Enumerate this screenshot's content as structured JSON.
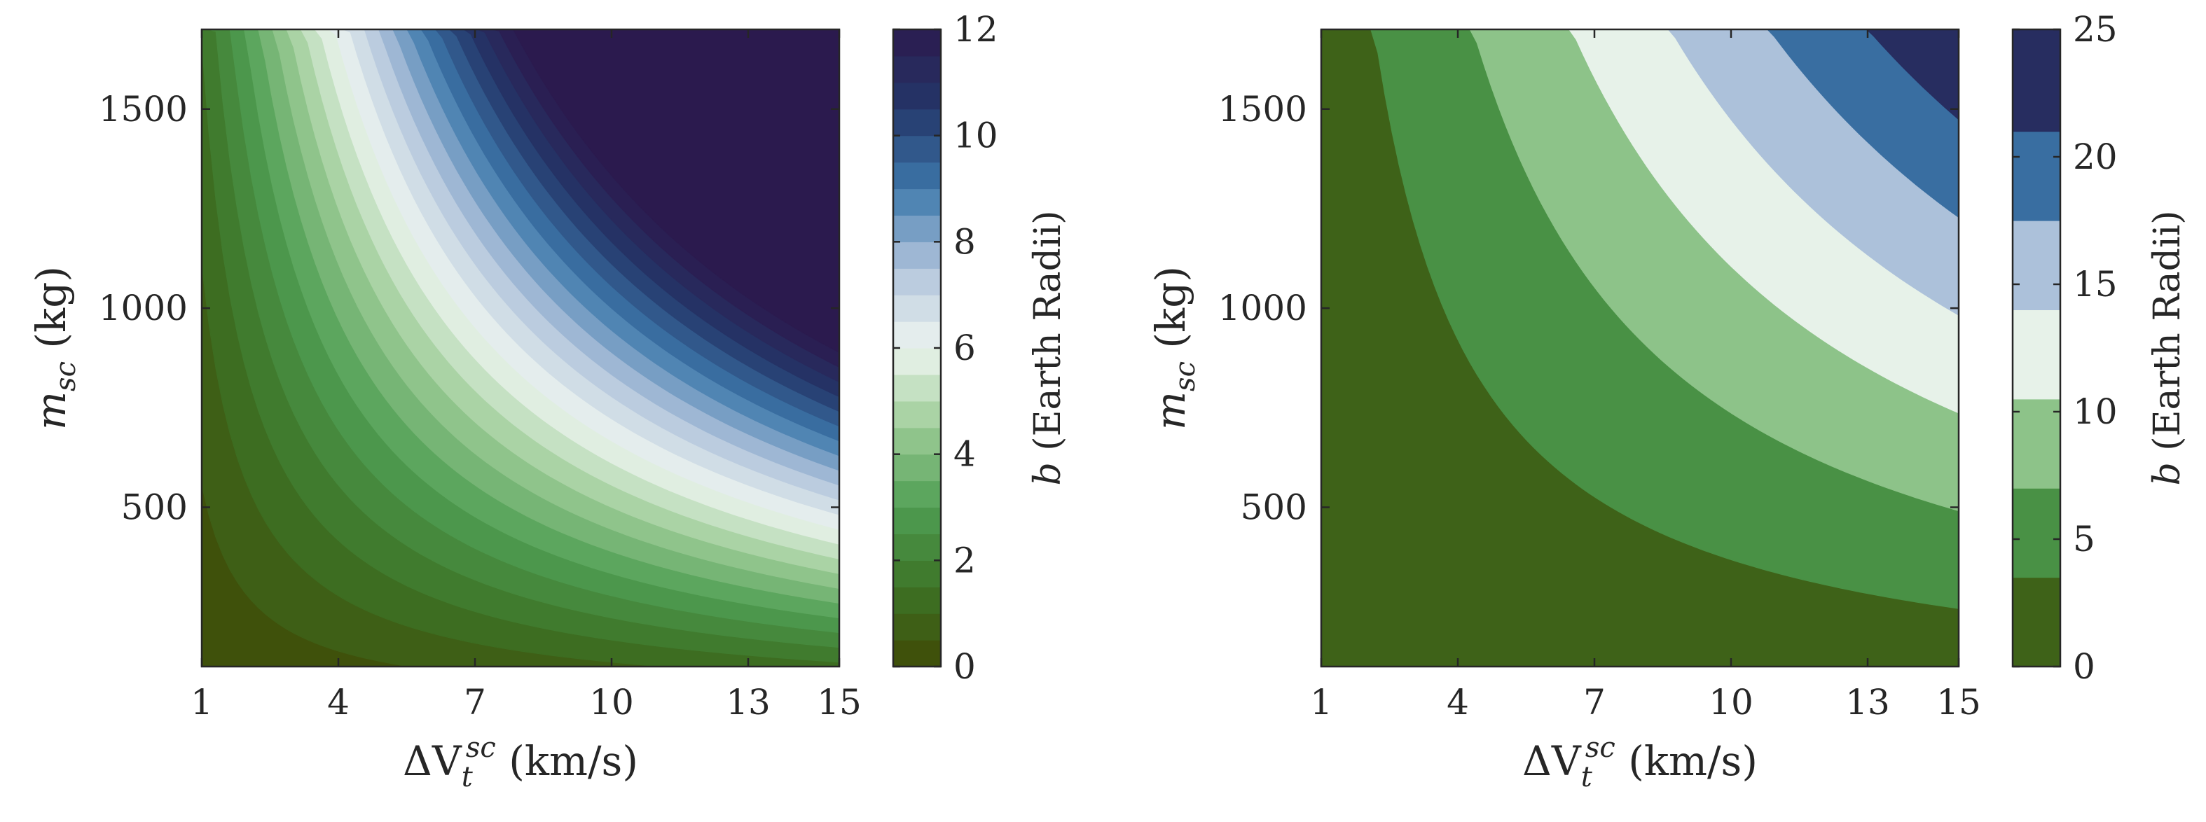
{
  "chart_data": [
    {
      "type": "heatmap",
      "subtype": "filled-contour",
      "title": "",
      "xlabel": {
        "prefix": "ΔV",
        "sub": "t",
        "sup": "sc",
        "suffix": " (km/s)"
      },
      "ylabel": {
        "prefix": "m",
        "sub": "sc",
        "suffix": " (kg)"
      },
      "xlim": [
        1,
        15
      ],
      "ylim": [
        100,
        1700
      ],
      "xticks": [
        1,
        4,
        7,
        10,
        13,
        15
      ],
      "xtick_labels": [
        "1",
        "4",
        "7",
        "10",
        "13",
        "15"
      ],
      "yticks": [
        500,
        1000,
        1500
      ],
      "ytick_labels": [
        "500",
        "1000",
        "1500"
      ],
      "colorbar": {
        "label": {
          "var": "b",
          "text": " (Earth Radii)"
        },
        "range": [
          0,
          12
        ],
        "ticks": [
          0,
          2,
          4,
          6,
          8,
          10,
          12
        ],
        "tick_labels": [
          "0",
          "2",
          "4",
          "6",
          "8",
          "10",
          "12"
        ]
      },
      "levels": [
        0,
        0.5,
        1,
        1.5,
        2,
        2.5,
        3,
        3.5,
        4,
        4.5,
        5,
        5.5,
        6,
        6.5,
        7,
        7.5,
        8,
        8.5,
        9,
        9.5,
        10,
        10.5,
        11,
        11.5,
        12
      ],
      "z_relation": "b ≈ 0.0009 · m_sc · ΔV_t^sc",
      "z_coefficient": 0.0009,
      "grid": false
    },
    {
      "type": "heatmap",
      "subtype": "filled-contour",
      "title": "",
      "xlabel": {
        "prefix": "ΔV",
        "sub": "t",
        "sup": "sc",
        "suffix": " (km/s)"
      },
      "ylabel": {
        "prefix": "m",
        "sub": "sc",
        "suffix": " (kg)"
      },
      "xlim": [
        1,
        15
      ],
      "ylim": [
        100,
        1700
      ],
      "xticks": [
        1,
        4,
        7,
        10,
        13,
        15
      ],
      "xtick_labels": [
        "1",
        "4",
        "7",
        "10",
        "13",
        "15"
      ],
      "yticks": [
        500,
        1000,
        1500
      ],
      "ytick_labels": [
        "500",
        "1000",
        "1500"
      ],
      "colorbar": {
        "label": {
          "var": "b",
          "text": " (Earth Radii)"
        },
        "range": [
          0,
          25
        ],
        "ticks": [
          0,
          5,
          10,
          15,
          20,
          25
        ],
        "tick_labels": [
          "0",
          "5",
          "10",
          "15",
          "20",
          "25"
        ]
      },
      "levels": [
        0,
        3.5,
        7,
        10.5,
        14,
        17.5,
        21,
        25
      ],
      "z_relation": "b ≈ 0.00095 · m_sc · ΔV_t^sc",
      "z_coefficient": 0.00095,
      "grid": false
    }
  ],
  "colors": {
    "colormap": [
      "#3f4a06",
      "#3d7426",
      "#4f9e53",
      "#9ccc96",
      "#eef5f0",
      "#b1c4dc",
      "#3d78ab",
      "#24376a",
      "#2b1a4e"
    ],
    "axis": "#262626",
    "background": "#ffffff"
  }
}
